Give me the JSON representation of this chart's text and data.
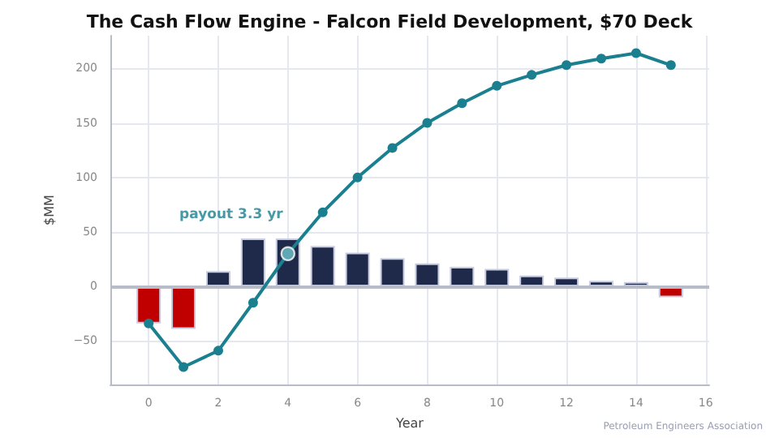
{
  "chart_data": {
    "type": "bar",
    "title": "The Cash Flow Engine - Falcon Field Development, $70 Deck",
    "xlabel": "Year",
    "ylabel": "$MM",
    "x": [
      0,
      1,
      2,
      3,
      4,
      5,
      6,
      7,
      8,
      9,
      10,
      11,
      12,
      13,
      14,
      15
    ],
    "series": [
      {
        "values": [
          -34,
          -39,
          14,
          44,
          44,
          37,
          31,
          26,
          21,
          18,
          16,
          10,
          8,
          5,
          4,
          -10
        ],
        "colors": [
          "#c00000",
          "#c00000",
          "#1f2a4a",
          "#1f2a4a",
          "#1f2a4a",
          "#1f2a4a",
          "#1f2a4a",
          "#1f2a4a",
          "#1f2a4a",
          "#1f2a4a",
          "#1f2a4a",
          "#1f2a4a",
          "#1f2a4a",
          "#1f2a4a",
          "#1f2a4a",
          "#c00000"
        ]
      },
      {
        "type": "line",
        "color": "#1a8090",
        "marker": "circle",
        "line_style": "solid",
        "values": [
          -34,
          -74,
          -59,
          -15,
          30,
          68,
          100,
          127,
          150,
          168,
          184,
          194,
          203,
          209,
          214,
          203
        ]
      }
    ],
    "xlim": [
      -1.1,
      16.1
    ],
    "xticks": [
      0,
      2,
      4,
      6,
      8,
      10,
      12,
      14,
      16
    ],
    "ylim": [
      -90,
      230
    ],
    "yticks": [
      -50,
      0,
      50,
      100,
      150,
      200
    ],
    "ref_lines": [
      {
        "axis": "y",
        "value": 0,
        "color": "#b8bcc8"
      }
    ],
    "annotations": [
      {
        "text": "payout 3.3 yr",
        "x": 4,
        "y": 30
      },
      "Petroleum Engineers Association"
    ],
    "grid": true
  }
}
